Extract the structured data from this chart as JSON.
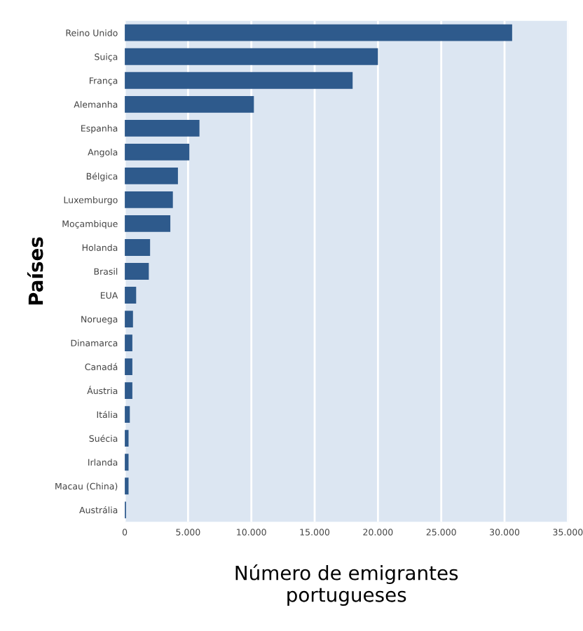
{
  "chart_data": {
    "type": "bar",
    "orientation": "horizontal",
    "xlabel": "Número de emigrantes\nportugueses",
    "ylabel": "Países",
    "categories": [
      "Reino Unido",
      "Suiça",
      "França",
      "Alemanha",
      "Espanha",
      "Angola",
      "Bélgica",
      "Luxemburgo",
      "Moçambique",
      "Holanda",
      "Brasil",
      "EUA",
      "Noruega",
      "Dinamarca",
      "Canadá",
      "Áustria",
      "Itália",
      "Suécia",
      "Irlanda",
      "Macau (China)",
      "Austrália"
    ],
    "values": [
      30600,
      20000,
      18000,
      10200,
      5900,
      5100,
      4200,
      3800,
      3600,
      2000,
      1900,
      900,
      650,
      600,
      600,
      600,
      400,
      300,
      300,
      300,
      100
    ],
    "color": "#2e5a8c",
    "xlim": [
      0,
      35000
    ],
    "xticks": [
      0,
      {
        "value": 5000,
        "label": "5.000"
      },
      {
        "value": 10000,
        "label": "10.000"
      },
      {
        "value": 15000,
        "label": "15.000"
      },
      {
        "value": 20000,
        "label": "20.000"
      },
      {
        "value": 25000,
        "label": "25.000"
      },
      {
        "value": 30000,
        "label": "30.000"
      },
      {
        "value": 35000,
        "label": "35.000"
      }
    ],
    "grid": "x"
  }
}
